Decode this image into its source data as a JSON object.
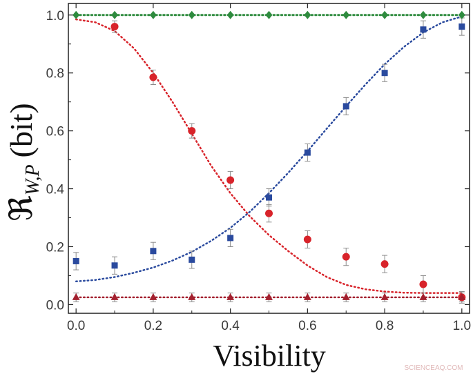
{
  "chart_data": {
    "type": "scatter",
    "xlabel": "Visibility",
    "ylabel_main": "ℜ",
    "ylabel_sub": "W,P",
    "ylabel_unit": "(bit)",
    "xlim": [
      -0.02,
      1.02
    ],
    "ylim": [
      -0.03,
      1.04
    ],
    "xticks": [
      0.0,
      0.2,
      0.4,
      0.6,
      0.8,
      1.0
    ],
    "yticks": [
      0.0,
      0.2,
      0.4,
      0.6,
      0.8,
      1.0
    ],
    "tick_labels_x": [
      "0.0",
      "0.2",
      "0.4",
      "0.6",
      "0.8",
      "1.0"
    ],
    "tick_labels_y": [
      "0.0",
      "0.2",
      "0.4",
      "0.6",
      "0.8",
      "1.0"
    ],
    "grid": false,
    "series": [
      {
        "marker": "diamond",
        "color": "#2e8b3e",
        "x": [
          0.0,
          0.1,
          0.2,
          0.3,
          0.4,
          0.5,
          0.6,
          0.7,
          0.8,
          0.9,
          1.0
        ],
        "values": [
          1.0,
          1.0,
          1.0,
          1.0,
          1.0,
          1.0,
          1.0,
          1.0,
          1.0,
          1.0,
          1.0
        ],
        "errors": [
          0.005,
          0.005,
          0.005,
          0.005,
          0.005,
          0.005,
          0.005,
          0.005,
          0.005,
          0.005,
          0.005
        ],
        "fit": {
          "x": [
            0.0,
            1.0
          ],
          "y": [
            1.0,
            1.0
          ]
        }
      },
      {
        "marker": "circle",
        "color": "#d8232a",
        "x": [
          0.1,
          0.2,
          0.3,
          0.4,
          0.5,
          0.6,
          0.7,
          0.8,
          0.9,
          1.0
        ],
        "values": [
          0.96,
          0.785,
          0.6,
          0.43,
          0.315,
          0.225,
          0.165,
          0.14,
          0.07,
          0.025
        ],
        "errors": [
          0.02,
          0.025,
          0.025,
          0.03,
          0.03,
          0.03,
          0.03,
          0.03,
          0.03,
          0.02
        ],
        "fit": {
          "x": [
            0.0,
            0.05,
            0.1,
            0.15,
            0.2,
            0.25,
            0.3,
            0.35,
            0.4,
            0.45,
            0.5,
            0.55,
            0.6,
            0.65,
            0.7,
            0.75,
            0.8,
            0.85,
            0.9,
            0.95,
            1.0
          ],
          "y": [
            0.985,
            0.975,
            0.945,
            0.885,
            0.8,
            0.7,
            0.59,
            0.48,
            0.385,
            0.305,
            0.24,
            0.185,
            0.135,
            0.095,
            0.068,
            0.053,
            0.045,
            0.041,
            0.04,
            0.04,
            0.04
          ]
        }
      },
      {
        "marker": "square",
        "color": "#2a4a9e",
        "x": [
          0.0,
          0.1,
          0.2,
          0.3,
          0.4,
          0.5,
          0.6,
          0.7,
          0.8,
          0.9,
          1.0
        ],
        "values": [
          0.15,
          0.135,
          0.185,
          0.155,
          0.23,
          0.37,
          0.525,
          0.685,
          0.8,
          0.95,
          0.96
        ],
        "errors": [
          0.03,
          0.03,
          0.03,
          0.03,
          0.03,
          0.03,
          0.03,
          0.03,
          0.03,
          0.03,
          0.03
        ],
        "fit": {
          "x": [
            0.0,
            0.05,
            0.1,
            0.15,
            0.2,
            0.25,
            0.3,
            0.35,
            0.4,
            0.45,
            0.5,
            0.55,
            0.6,
            0.65,
            0.7,
            0.75,
            0.8,
            0.85,
            0.9,
            0.95,
            1.0
          ],
          "y": [
            0.08,
            0.085,
            0.095,
            0.11,
            0.128,
            0.152,
            0.182,
            0.22,
            0.265,
            0.32,
            0.385,
            0.455,
            0.53,
            0.608,
            0.685,
            0.76,
            0.83,
            0.89,
            0.94,
            0.975,
            0.995
          ]
        }
      },
      {
        "marker": "triangle",
        "color": "#a3202e",
        "x": [
          0.0,
          0.1,
          0.2,
          0.3,
          0.4,
          0.5,
          0.6,
          0.7,
          0.8,
          0.9,
          1.0
        ],
        "values": [
          0.025,
          0.025,
          0.025,
          0.025,
          0.025,
          0.025,
          0.025,
          0.025,
          0.025,
          0.025,
          0.025
        ],
        "errors": [
          0.015,
          0.015,
          0.015,
          0.015,
          0.015,
          0.015,
          0.015,
          0.015,
          0.015,
          0.015,
          0.015
        ],
        "fit": {
          "x": [
            0.0,
            1.0
          ],
          "y": [
            0.025,
            0.025
          ]
        }
      }
    ]
  },
  "watermark": "SCIENCEAQ.COM"
}
